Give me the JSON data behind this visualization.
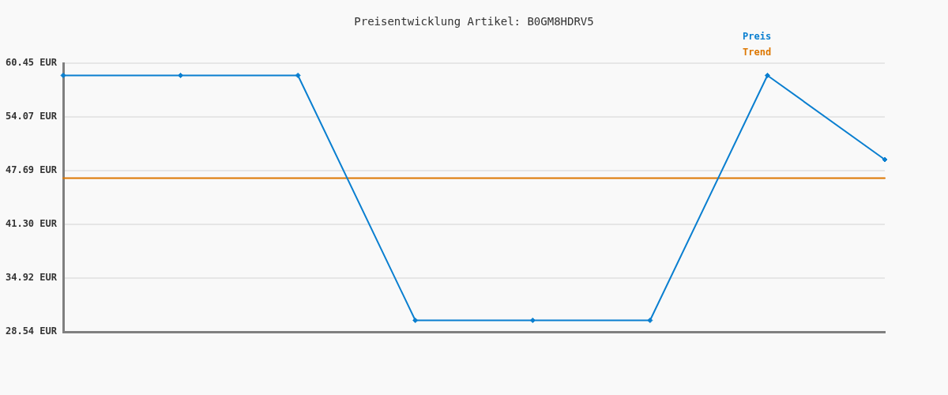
{
  "chart_data": {
    "type": "line",
    "title": "Preisentwicklung Artikel: B0GM8HDRV5",
    "categories": [
      null,
      null,
      null,
      null,
      null,
      null,
      null,
      null
    ],
    "series": [
      {
        "name": "Preis",
        "color": "#0a7fd0",
        "marker": "diamond",
        "values": [
          59.0,
          59.0,
          59.0,
          29.9,
          29.9,
          29.9,
          59.0,
          49.0
        ]
      },
      {
        "name": "Trend",
        "color": "#dd7700",
        "marker": "none",
        "values": [
          46.8,
          46.8,
          46.8,
          46.8,
          46.8,
          46.8,
          46.8,
          46.8
        ]
      }
    ],
    "ylim": [
      28.54,
      60.45
    ],
    "yticks": [
      {
        "value": 28.54,
        "label": "28.54 EUR"
      },
      {
        "value": 34.92,
        "label": "34.92 EUR"
      },
      {
        "value": 41.3,
        "label": "41.30 EUR"
      },
      {
        "value": 47.69,
        "label": "47.69 EUR"
      },
      {
        "value": 54.07,
        "label": "54.07 EUR"
      },
      {
        "value": 60.45,
        "label": "60.45 EUR"
      }
    ],
    "grid": "y",
    "legend": "top right",
    "tick_labels": "y"
  }
}
